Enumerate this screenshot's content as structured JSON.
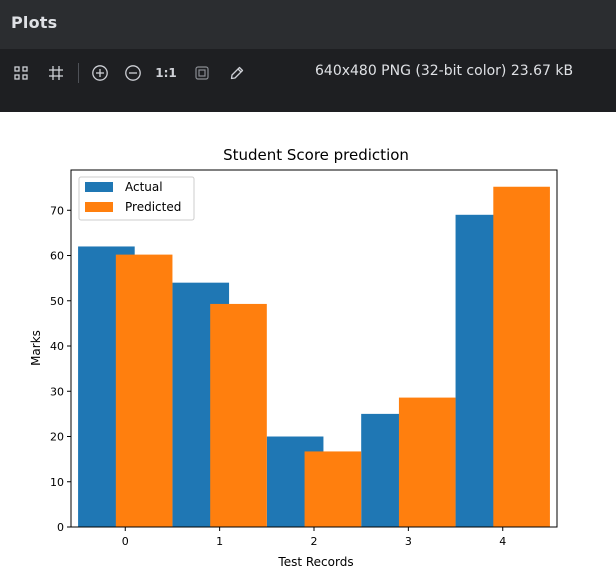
{
  "window": {
    "title": "Plots"
  },
  "toolbar": {
    "tools": [
      {
        "name": "fit-screen-icon"
      },
      {
        "name": "grid-icon"
      },
      {
        "name": "zoom-in-icon"
      },
      {
        "name": "zoom-out-icon"
      },
      {
        "name": "actual-size-icon",
        "label": "1:1"
      },
      {
        "name": "background-toggle-icon"
      },
      {
        "name": "color-picker-icon"
      }
    ],
    "image_info": "640x480 PNG (32-bit color) 23.67 kB"
  },
  "colors": {
    "actual": "#1f77b4",
    "predicted": "#ff7f0e"
  },
  "chart_data": {
    "type": "bar",
    "title": "Student Score prediction",
    "xlabel": "Test Records",
    "ylabel": "Marks",
    "categories": [
      "0",
      "1",
      "2",
      "3",
      "4"
    ],
    "series": [
      {
        "name": "Actual",
        "values": [
          62,
          54,
          20,
          25,
          69
        ]
      },
      {
        "name": "Predicted",
        "values": [
          60.2,
          49.3,
          16.7,
          28.6,
          75.2
        ]
      }
    ],
    "yticks": [
      0,
      10,
      20,
      30,
      40,
      50,
      60,
      70
    ],
    "ylim": [
      0,
      78.9
    ],
    "grid": false,
    "legend": "top-left"
  }
}
